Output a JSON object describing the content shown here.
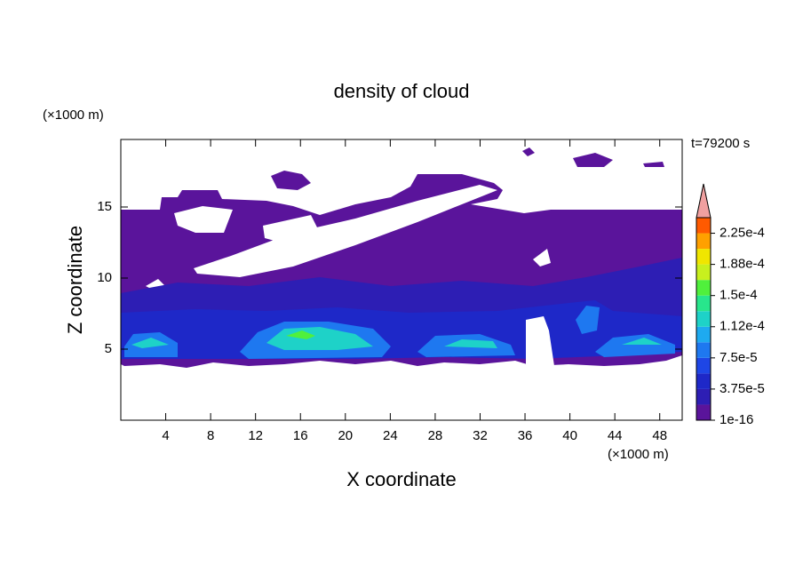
{
  "chart_data": {
    "type": "contour",
    "title": "density of cloud",
    "xlabel": "X coordinate",
    "ylabel": "Z coordinate",
    "xunit": "(×1000 m)",
    "yunit": "(×1000 m)",
    "annotation": "t=79200 s",
    "xlim": [
      0,
      50
    ],
    "ylim": [
      0,
      19.75
    ],
    "xticks": [
      4,
      8,
      12,
      16,
      20,
      24,
      28,
      32,
      36,
      40,
      44,
      48
    ],
    "yticks": [
      5,
      10,
      15
    ],
    "colorbar": {
      "clim": [
        1e-16,
        0.00024375
      ],
      "ticks": [
        1e-16,
        {
          "value": 3.75e-05,
          "label": "3.75e-5"
        },
        {
          "value": 7.5e-05,
          "label": "7.5e-5"
        },
        {
          "value": 0.0001125,
          "label": "1.12e-4"
        },
        {
          "value": 0.00015,
          "label": "1.5e-4"
        },
        {
          "value": 0.0001875,
          "label": "1.88e-4"
        },
        {
          "value": 0.000225,
          "label": "2.25e-4"
        }
      ],
      "colors": [
        "#5a149b",
        "#2d1eb4",
        "#1e28c8",
        "#1e46e6",
        "#1e78f0",
        "#1eaaf0",
        "#1ed2c8",
        "#28e68c",
        "#50f03c",
        "#c8f01e",
        "#f0e600",
        "#ffa000",
        "#ff5a00",
        "#f01e1e"
      ],
      "over_color": "#f0a0a0"
    }
  }
}
